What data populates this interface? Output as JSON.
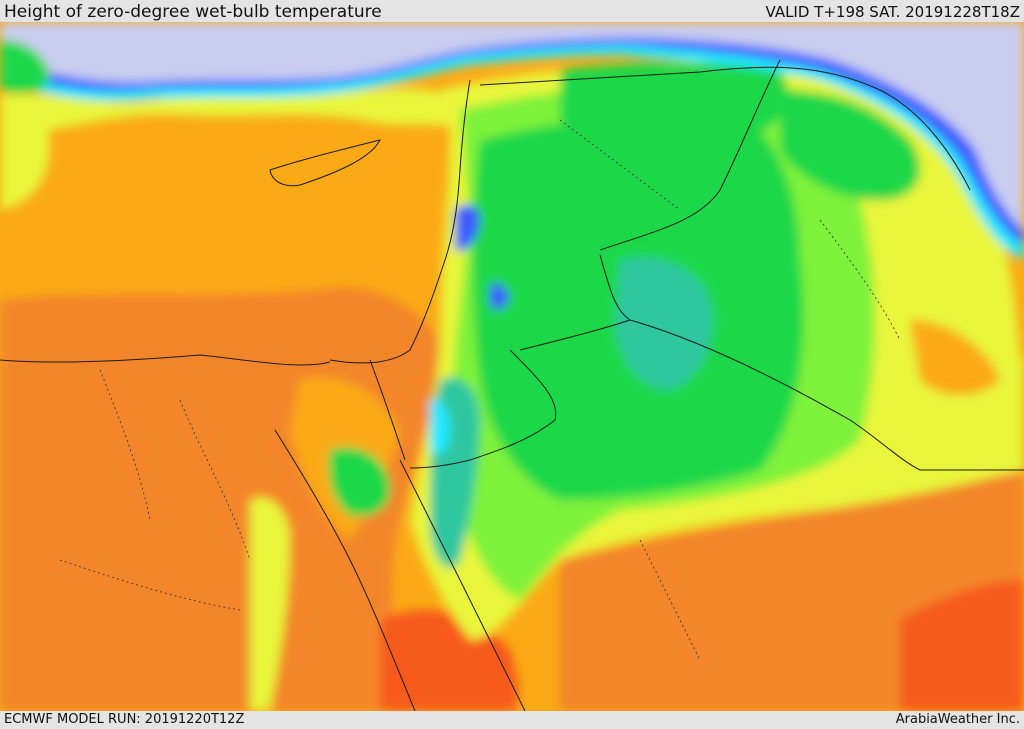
{
  "header": {
    "title": "Height of zero-degree wet-bulb temperature",
    "valid": "VALID T+198 SAT. 20191228T18Z"
  },
  "footer": {
    "model_run": "ECMWF MODEL RUN: 20191220T12Z",
    "credit": "ArabiaWeather Inc."
  },
  "map": {
    "colors": {
      "water_cold": "#c8cdef",
      "blue": "#3a5cff",
      "cyan": "#20e8ff",
      "teal": "#2fc7a0",
      "green": "#1fd84a",
      "lime": "#7ff23a",
      "yellow": "#e8f53a",
      "yellow_orange": "#f5c22a",
      "orange": "#fbaa16",
      "dark_orange": "#f3862c",
      "red_orange": "#f65a1c"
    }
  }
}
